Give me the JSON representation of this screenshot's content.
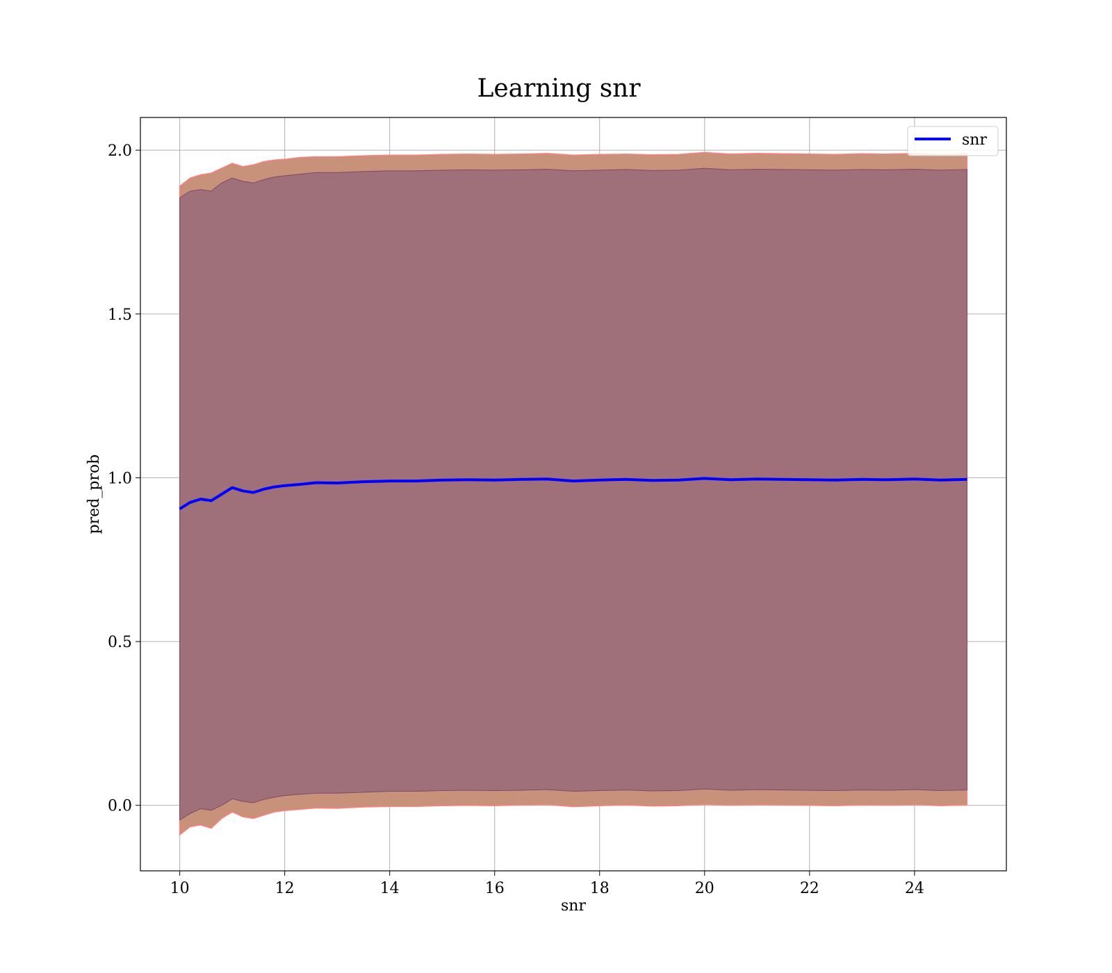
{
  "chart_data": {
    "type": "line",
    "title": "Learning snr",
    "xlabel": "snr",
    "ylabel": "pred_prob",
    "xlim": [
      9.25,
      25.75
    ],
    "ylim": [
      -0.2,
      2.1
    ],
    "x_ticks": [
      10,
      12,
      14,
      16,
      18,
      20,
      22,
      24
    ],
    "x_tick_labels": [
      "10",
      "12",
      "14",
      "16",
      "18",
      "20",
      "22",
      "24"
    ],
    "y_ticks": [
      0.0,
      0.5,
      1.0,
      1.5,
      2.0
    ],
    "y_tick_labels": [
      "0.0",
      "0.5",
      "1.0",
      "1.5",
      "2.0"
    ],
    "grid": true,
    "legend": {
      "position": "top-right",
      "entries": [
        "snr"
      ]
    },
    "colors": {
      "line": "#0000ff",
      "band_outer": "#c8917a",
      "band_outer_edge": "#ff7f7f",
      "band_inner": "#a0707a",
      "band_inner_edge": "#7a4a66",
      "grid": "#b0b0b0"
    },
    "series": [
      {
        "name": "snr",
        "x": [
          10.0,
          10.2,
          10.4,
          10.6,
          10.8,
          11.0,
          11.2,
          11.4,
          11.6,
          11.8,
          12.0,
          12.3,
          12.6,
          13.0,
          13.5,
          14.0,
          14.5,
          15.0,
          15.5,
          16.0,
          16.5,
          17.0,
          17.5,
          18.0,
          18.5,
          19.0,
          19.5,
          20.0,
          20.5,
          21.0,
          21.5,
          22.0,
          22.5,
          23.0,
          23.5,
          24.0,
          24.5,
          25.0
        ],
        "y": [
          0.905,
          0.925,
          0.935,
          0.93,
          0.95,
          0.97,
          0.96,
          0.955,
          0.965,
          0.972,
          0.976,
          0.98,
          0.985,
          0.984,
          0.988,
          0.99,
          0.99,
          0.993,
          0.994,
          0.993,
          0.995,
          0.996,
          0.99,
          0.993,
          0.995,
          0.992,
          0.993,
          0.998,
          0.994,
          0.996,
          0.995,
          0.994,
          0.993,
          0.995,
          0.994,
          0.996,
          0.993,
          0.995
        ]
      }
    ],
    "band_outer": {
      "upper": [
        1.89,
        1.915,
        1.925,
        1.93,
        1.945,
        1.96,
        1.95,
        1.955,
        1.965,
        1.97,
        1.972,
        1.978,
        1.98,
        1.98,
        1.983,
        1.985,
        1.985,
        1.987,
        1.988,
        1.987,
        1.988,
        1.99,
        1.985,
        1.987,
        1.988,
        1.986,
        1.987,
        1.993,
        1.988,
        1.99,
        1.989,
        1.988,
        1.987,
        1.989,
        1.988,
        1.99,
        1.987,
        1.989
      ],
      "lower": [
        -0.09,
        -0.065,
        -0.06,
        -0.07,
        -0.04,
        -0.02,
        -0.035,
        -0.04,
        -0.03,
        -0.02,
        -0.016,
        -0.012,
        -0.008,
        -0.009,
        -0.005,
        -0.003,
        -0.003,
        -0.001,
        0.0,
        -0.001,
        0.001,
        0.002,
        -0.004,
        -0.001,
        0.001,
        -0.002,
        -0.001,
        0.003,
        0.0,
        0.002,
        0.001,
        0.0,
        -0.001,
        0.001,
        0.0,
        0.002,
        -0.001,
        0.001
      ]
    },
    "band_inner": {
      "upper": [
        1.855,
        1.875,
        1.88,
        1.875,
        1.9,
        1.915,
        1.905,
        1.9,
        1.91,
        1.918,
        1.922,
        1.927,
        1.932,
        1.932,
        1.935,
        1.937,
        1.937,
        1.939,
        1.94,
        1.939,
        1.94,
        1.942,
        1.937,
        1.939,
        1.941,
        1.938,
        1.939,
        1.945,
        1.94,
        1.942,
        1.941,
        1.94,
        1.939,
        1.941,
        1.94,
        1.942,
        1.939,
        1.941
      ],
      "lower": [
        -0.045,
        -0.025,
        -0.01,
        -0.015,
        0.0,
        0.02,
        0.012,
        0.008,
        0.018,
        0.025,
        0.03,
        0.034,
        0.037,
        0.037,
        0.04,
        0.043,
        0.043,
        0.045,
        0.046,
        0.045,
        0.046,
        0.048,
        0.043,
        0.045,
        0.047,
        0.044,
        0.045,
        0.05,
        0.046,
        0.048,
        0.047,
        0.046,
        0.045,
        0.047,
        0.046,
        0.048,
        0.045,
        0.047
      ]
    }
  }
}
